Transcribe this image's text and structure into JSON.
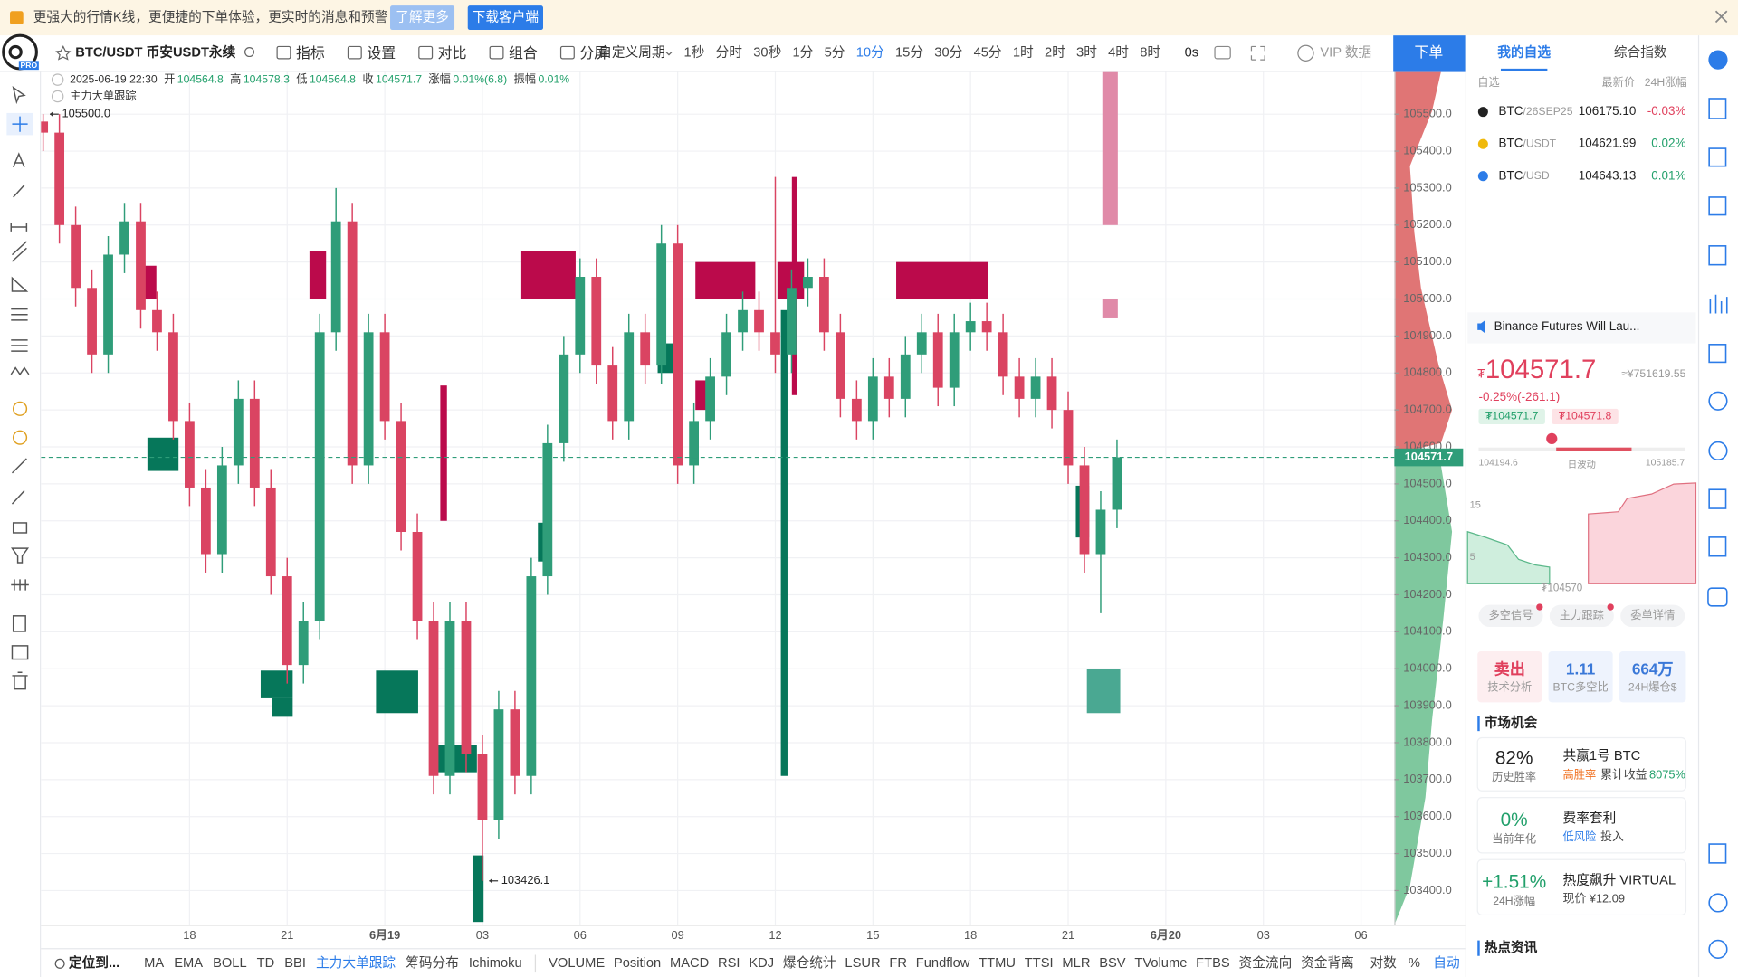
{
  "logo_badge": "PRO",
  "banner": {
    "text": "更强大的行情K线，更便捷的下单体验，更实时的消息和预警",
    "learn_more": "了解更多",
    "download": "下载客户端"
  },
  "toolbar": {
    "symbol": "BTC/USDT 币安USDT永续",
    "tools": [
      "指标",
      "设置",
      "对比",
      "组合",
      "分屏"
    ],
    "custom_period": "自定义周期",
    "periods": [
      "1秒",
      "分时",
      "30秒",
      "1分",
      "5分",
      "10分",
      "15分",
      "30分",
      "45分",
      "1时",
      "2时",
      "3时",
      "4时",
      "8时"
    ],
    "active_period": "10分",
    "countdown": "0s",
    "vip": "VIP 数据",
    "order": "下单"
  },
  "info": {
    "datetime": "2025-06-19 22:30",
    "fields": [
      {
        "label": "开",
        "value": "104564.8"
      },
      {
        "label": "高",
        "value": "104578.3"
      },
      {
        "label": "低",
        "value": "104564.8"
      },
      {
        "label": "收",
        "value": "104571.7"
      },
      {
        "label": "涨幅",
        "value": "0.01%(6.8)"
      },
      {
        "label": "振幅",
        "value": "0.01%"
      }
    ],
    "indicator": "主力大单跟踪"
  },
  "chart_data": {
    "type": "candlestick",
    "xlim": [
      -0.13,
      83.05
    ],
    "xticks": [
      {
        "value": 9,
        "label": "18"
      },
      {
        "value": 15,
        "label": "21"
      },
      {
        "value": 21,
        "label": "6月19"
      },
      {
        "value": 27,
        "label": "03"
      },
      {
        "value": 33,
        "label": "06"
      },
      {
        "value": 39,
        "label": "09"
      },
      {
        "value": 45,
        "label": "12"
      },
      {
        "value": 51,
        "label": "15"
      },
      {
        "value": 57,
        "label": "18"
      },
      {
        "value": 63,
        "label": "21"
      },
      {
        "value": 69,
        "label": "6月20"
      },
      {
        "value": 75,
        "label": "03"
      },
      {
        "value": 81,
        "label": "06"
      }
    ],
    "ylim": [
      103307,
      105614
    ],
    "yticks": [
      {
        "value": 103400,
        "label": "103400.0"
      },
      {
        "value": 103500,
        "label": "103500.0"
      },
      {
        "value": 103600,
        "label": "103600.0"
      },
      {
        "value": 103700,
        "label": "103700.0"
      },
      {
        "value": 103800,
        "label": "103800.0"
      },
      {
        "value": 103900,
        "label": "103900.0"
      },
      {
        "value": 104000,
        "label": "104000.0"
      },
      {
        "value": 104100,
        "label": "104100.0"
      },
      {
        "value": 104200,
        "label": "104200.0"
      },
      {
        "value": 104300,
        "label": "104300.0"
      },
      {
        "value": 104400,
        "label": "104400.0"
      },
      {
        "value": 104500,
        "label": "104500.0"
      },
      {
        "value": 104600,
        "label": "104600.0"
      },
      {
        "value": 104700,
        "label": "104700.0"
      },
      {
        "value": 104800,
        "label": "104800.0"
      },
      {
        "value": 104900,
        "label": "104900.0"
      },
      {
        "value": 105000,
        "label": "105000.0"
      },
      {
        "value": 105100,
        "label": "105100.0"
      },
      {
        "value": 105200,
        "label": "105200.0"
      },
      {
        "value": 105300,
        "label": "105300.0"
      },
      {
        "value": 105400,
        "label": "105400.0"
      },
      {
        "value": 105500,
        "label": "105500.0"
      }
    ],
    "x": [
      0,
      1,
      2,
      3,
      4,
      5,
      6,
      7,
      8,
      9,
      10,
      11,
      12,
      13,
      14,
      15,
      16,
      17,
      18,
      19,
      20,
      21,
      22,
      23,
      24,
      25,
      26,
      27,
      28,
      29,
      30,
      31,
      32,
      33,
      34,
      35,
      36,
      37,
      38,
      39,
      40,
      41,
      42,
      43,
      44,
      45,
      46,
      47,
      48,
      49,
      50,
      51,
      52,
      53,
      54,
      55,
      56,
      57,
      58,
      59,
      60,
      61,
      62,
      63,
      64,
      65,
      66
    ],
    "open": [
      105480,
      105450,
      105200,
      105030,
      104850,
      105120,
      105210,
      104970,
      104910,
      104670,
      104490,
      104310,
      104550,
      104730,
      104490,
      104250,
      104010,
      104130,
      104910,
      105210,
      104550,
      104910,
      104670,
      104370,
      104130,
      103710,
      104130,
      103770,
      103590,
      103890,
      103710,
      104250,
      104610,
      104850,
      105060,
      104820,
      104670,
      104910,
      104820,
      105150,
      104550,
      104670,
      104790,
      104910,
      104970,
      104910,
      104850,
      105030,
      105060,
      104910,
      104730,
      104670,
      104790,
      104730,
      104850,
      104910,
      104760,
      104910,
      104940,
      104910,
      104790,
      104730,
      104790,
      104700,
      104550,
      104310,
      104430
    ],
    "high": [
      105500,
      105500,
      105250,
      105080,
      105170,
      105260,
      105260,
      105020,
      104960,
      104720,
      104540,
      104600,
      104780,
      104780,
      104540,
      104300,
      104180,
      104960,
      105300,
      105260,
      104960,
      104960,
      104720,
      104420,
      104180,
      104180,
      104180,
      103820,
      103940,
      103940,
      104300,
      104660,
      104900,
      105110,
      105110,
      104870,
      104960,
      104960,
      105200,
      105200,
      104720,
      104840,
      104960,
      105020,
      105020,
      105330,
      105080,
      105110,
      105110,
      104960,
      104780,
      104840,
      104840,
      104900,
      104960,
      104960,
      104960,
      104990,
      104990,
      104960,
      104840,
      104840,
      104840,
      104750,
      104600,
      104480,
      104620
    ],
    "low": [
      105400,
      105150,
      104980,
      104800,
      104800,
      105070,
      104920,
      104860,
      104620,
      104440,
      104260,
      104260,
      104500,
      104440,
      104200,
      103960,
      103960,
      104080,
      104860,
      104500,
      104500,
      104620,
      104320,
      104080,
      103660,
      103660,
      103720,
      103426.1,
      103540,
      103660,
      103660,
      104200,
      104560,
      104800,
      104770,
      104620,
      104620,
      104770,
      104770,
      104500,
      104500,
      104620,
      104740,
      104860,
      104860,
      104800,
      104800,
      104980,
      104860,
      104680,
      104620,
      104620,
      104680,
      104680,
      104800,
      104710,
      104710,
      104860,
      104860,
      104740,
      104680,
      104680,
      104650,
      104500,
      104260,
      104150,
      104380
    ],
    "close": [
      105450,
      105200,
      105030,
      104850,
      105120,
      105210,
      104970,
      104910,
      104670,
      104490,
      104310,
      104550,
      104730,
      104490,
      104250,
      104010,
      104130,
      104910,
      105210,
      104550,
      104910,
      104670,
      104370,
      104130,
      103710,
      104130,
      103770,
      103590,
      103890,
      103710,
      104250,
      104610,
      104850,
      105060,
      104820,
      104670,
      104910,
      104820,
      105150,
      104550,
      104670,
      104790,
      104910,
      104970,
      104910,
      104850,
      105030,
      105060,
      104910,
      104730,
      104670,
      104790,
      104730,
      104850,
      104910,
      104760,
      104910,
      104940,
      104910,
      104790,
      104730,
      104790,
      104700,
      104550,
      104310,
      104430,
      104571.7
    ],
    "up_color": "#2f9d79",
    "down_color": "#da4462",
    "last_price": 104571.7,
    "annotations": [
      {
        "x": 0,
        "value": 105500,
        "label": "105500.0"
      },
      {
        "x": 27,
        "value": 103426.1,
        "label": "103426.1"
      }
    ],
    "blocks": [
      {
        "x": [
          5.94,
          6.96
        ],
        "y": [
          105000,
          105090
        ],
        "color": "#bb0a4b"
      },
      {
        "x": [
          16.37,
          17.39
        ],
        "y": [
          105000,
          105130
        ],
        "color": "#bb0a4b"
      },
      {
        "x": [
          29.39,
          32.73
        ],
        "y": [
          105000,
          105130
        ],
        "color": "#bb0a4b"
      },
      {
        "x": [
          40.09,
          43.77
        ],
        "y": [
          105000,
          105100
        ],
        "color": "#bb0a4b"
      },
      {
        "x": [
          45.13,
          46.77
        ],
        "y": [
          105000,
          105100
        ],
        "color": "#bb0a4b"
      },
      {
        "x": [
          52.43,
          58.09
        ],
        "y": [
          105000,
          105100
        ],
        "color": "#bb0a4b"
      },
      {
        "x": [
          40.09,
          41.04
        ],
        "y": [
          104700,
          104780
        ],
        "color": "#bb0a4b"
      },
      {
        "x": [
          46.02,
          46.36
        ],
        "y": [
          104740,
          105330
        ],
        "color": "#bb0a4b"
      },
      {
        "x": [
          24.41,
          24.82
        ],
        "y": [
          104400,
          104766
        ],
        "color": "#bb0a4b"
      },
      {
        "x": [
          6.41,
          8.32
        ],
        "y": [
          104535,
          104625
        ],
        "color": "#06775a"
      },
      {
        "x": [
          13.37,
          15.34
        ],
        "y": [
          103920,
          103995
        ],
        "color": "#06775a"
      },
      {
        "x": [
          14.05,
          15.34
        ],
        "y": [
          103870,
          103920
        ],
        "color": "#06775a"
      },
      {
        "x": [
          20.46,
          23.05
        ],
        "y": [
          103880,
          103995
        ],
        "color": "#06775a"
      },
      {
        "x": [
          37.77,
          38.79
        ],
        "y": [
          104800,
          104880
        ],
        "color": "#06775a"
      },
      {
        "x": [
          24.0,
          26.66
        ],
        "y": [
          103720,
          103795
        ],
        "color": "#06775a"
      },
      {
        "x": [
          26.39,
          27.07
        ],
        "y": [
          103315,
          103495
        ],
        "color": "#06775a"
      },
      {
        "x": [
          30.41,
          31.02
        ],
        "y": [
          104290,
          104395
        ],
        "color": "#06775a"
      },
      {
        "x": [
          45.34,
          45.75
        ],
        "y": [
          103710,
          104970
        ],
        "color": "#06775a"
      },
      {
        "x": [
          63.47,
          64.29
        ],
        "y": [
          104355,
          104495
        ],
        "color": "#06775a"
      },
      {
        "x": [
          64.15,
          66.2
        ],
        "y": [
          103880,
          104000
        ],
        "color": "#4aa892"
      },
      {
        "x": [
          65.1,
          66.05
        ],
        "y": [
          105200,
          105614
        ],
        "color": "#e08aa8"
      },
      {
        "x": [
          65.1,
          66.05
        ],
        "y": [
          104950,
          105000
        ],
        "color": "#e08aa8"
      }
    ]
  },
  "bottom_bar": {
    "locate": "定位到...",
    "indicators_main": [
      "MA",
      "EMA",
      "BOLL",
      "TD",
      "BBI",
      "主力大单跟踪",
      "筹码分布",
      "Ichimoku"
    ],
    "active": "主力大单跟踪",
    "indicators_sub": [
      "VOLUME",
      "Position",
      "MACD",
      "RSI",
      "KDJ",
      "爆仓统计",
      "LSUR",
      "FR",
      "Fundflow",
      "TTMU",
      "TTSI",
      "MLR",
      "BSV",
      "TVolume",
      "FTBS",
      "资金流向",
      "资金背离"
    ],
    "log": "对数",
    "percent": "%",
    "auto": "自动"
  },
  "side_panel": {
    "tabs": [
      "我的自选",
      "综合指数"
    ],
    "header": {
      "group": "自选",
      "price": "最新价",
      "change": "24H涨幅"
    },
    "watchlist": [
      {
        "base": "BTC",
        "quote": "/26SEP25",
        "price": "106175.10",
        "change": "-0.03%"
      },
      {
        "base": "BTC",
        "quote": "/USDT",
        "price": "104621.99",
        "change": "0.02%"
      },
      {
        "base": "BTC",
        "quote": "/USD",
        "price": "104643.13",
        "change": "0.01%"
      }
    ],
    "news": "Binance Futures Will Lau...",
    "currency": "₮",
    "price": "104571.7",
    "cny": "≈¥751619.55",
    "change": "-0.25%(-261.1)",
    "bid": "₮104571.7",
    "ask": "₮104571.8",
    "range_low": "104194.6",
    "range_label": "日波动",
    "range_high": "105185.7",
    "depth_ticks": [
      "15",
      "5"
    ],
    "depth_price": "₮104570",
    "buttons": [
      "多空信号",
      "主力跟踪",
      "委单详情"
    ],
    "cards": [
      {
        "value": "卖出",
        "label": "技术分析"
      },
      {
        "value": "1.11",
        "label": "BTC多空比"
      },
      {
        "value": "664万",
        "label": "24H爆仓$"
      }
    ],
    "opportunity_title": "市场机会",
    "opportunities": [
      {
        "value": "82%",
        "value_label": "历史胜率",
        "title": "共赢1号 BTC",
        "tag": "高胜率",
        "note": "累计收益",
        "note_value": "8075%"
      },
      {
        "value": "0%",
        "value_label": "当前年化",
        "title": "费率套利",
        "tag": "低风险",
        "note": "投入"
      },
      {
        "value": "+1.51%",
        "value_label": "24H涨幅",
        "title": "热度飙升 VIRTUAL",
        "note": "现价 ¥12.09"
      }
    ],
    "hot_title": "热点资讯"
  }
}
